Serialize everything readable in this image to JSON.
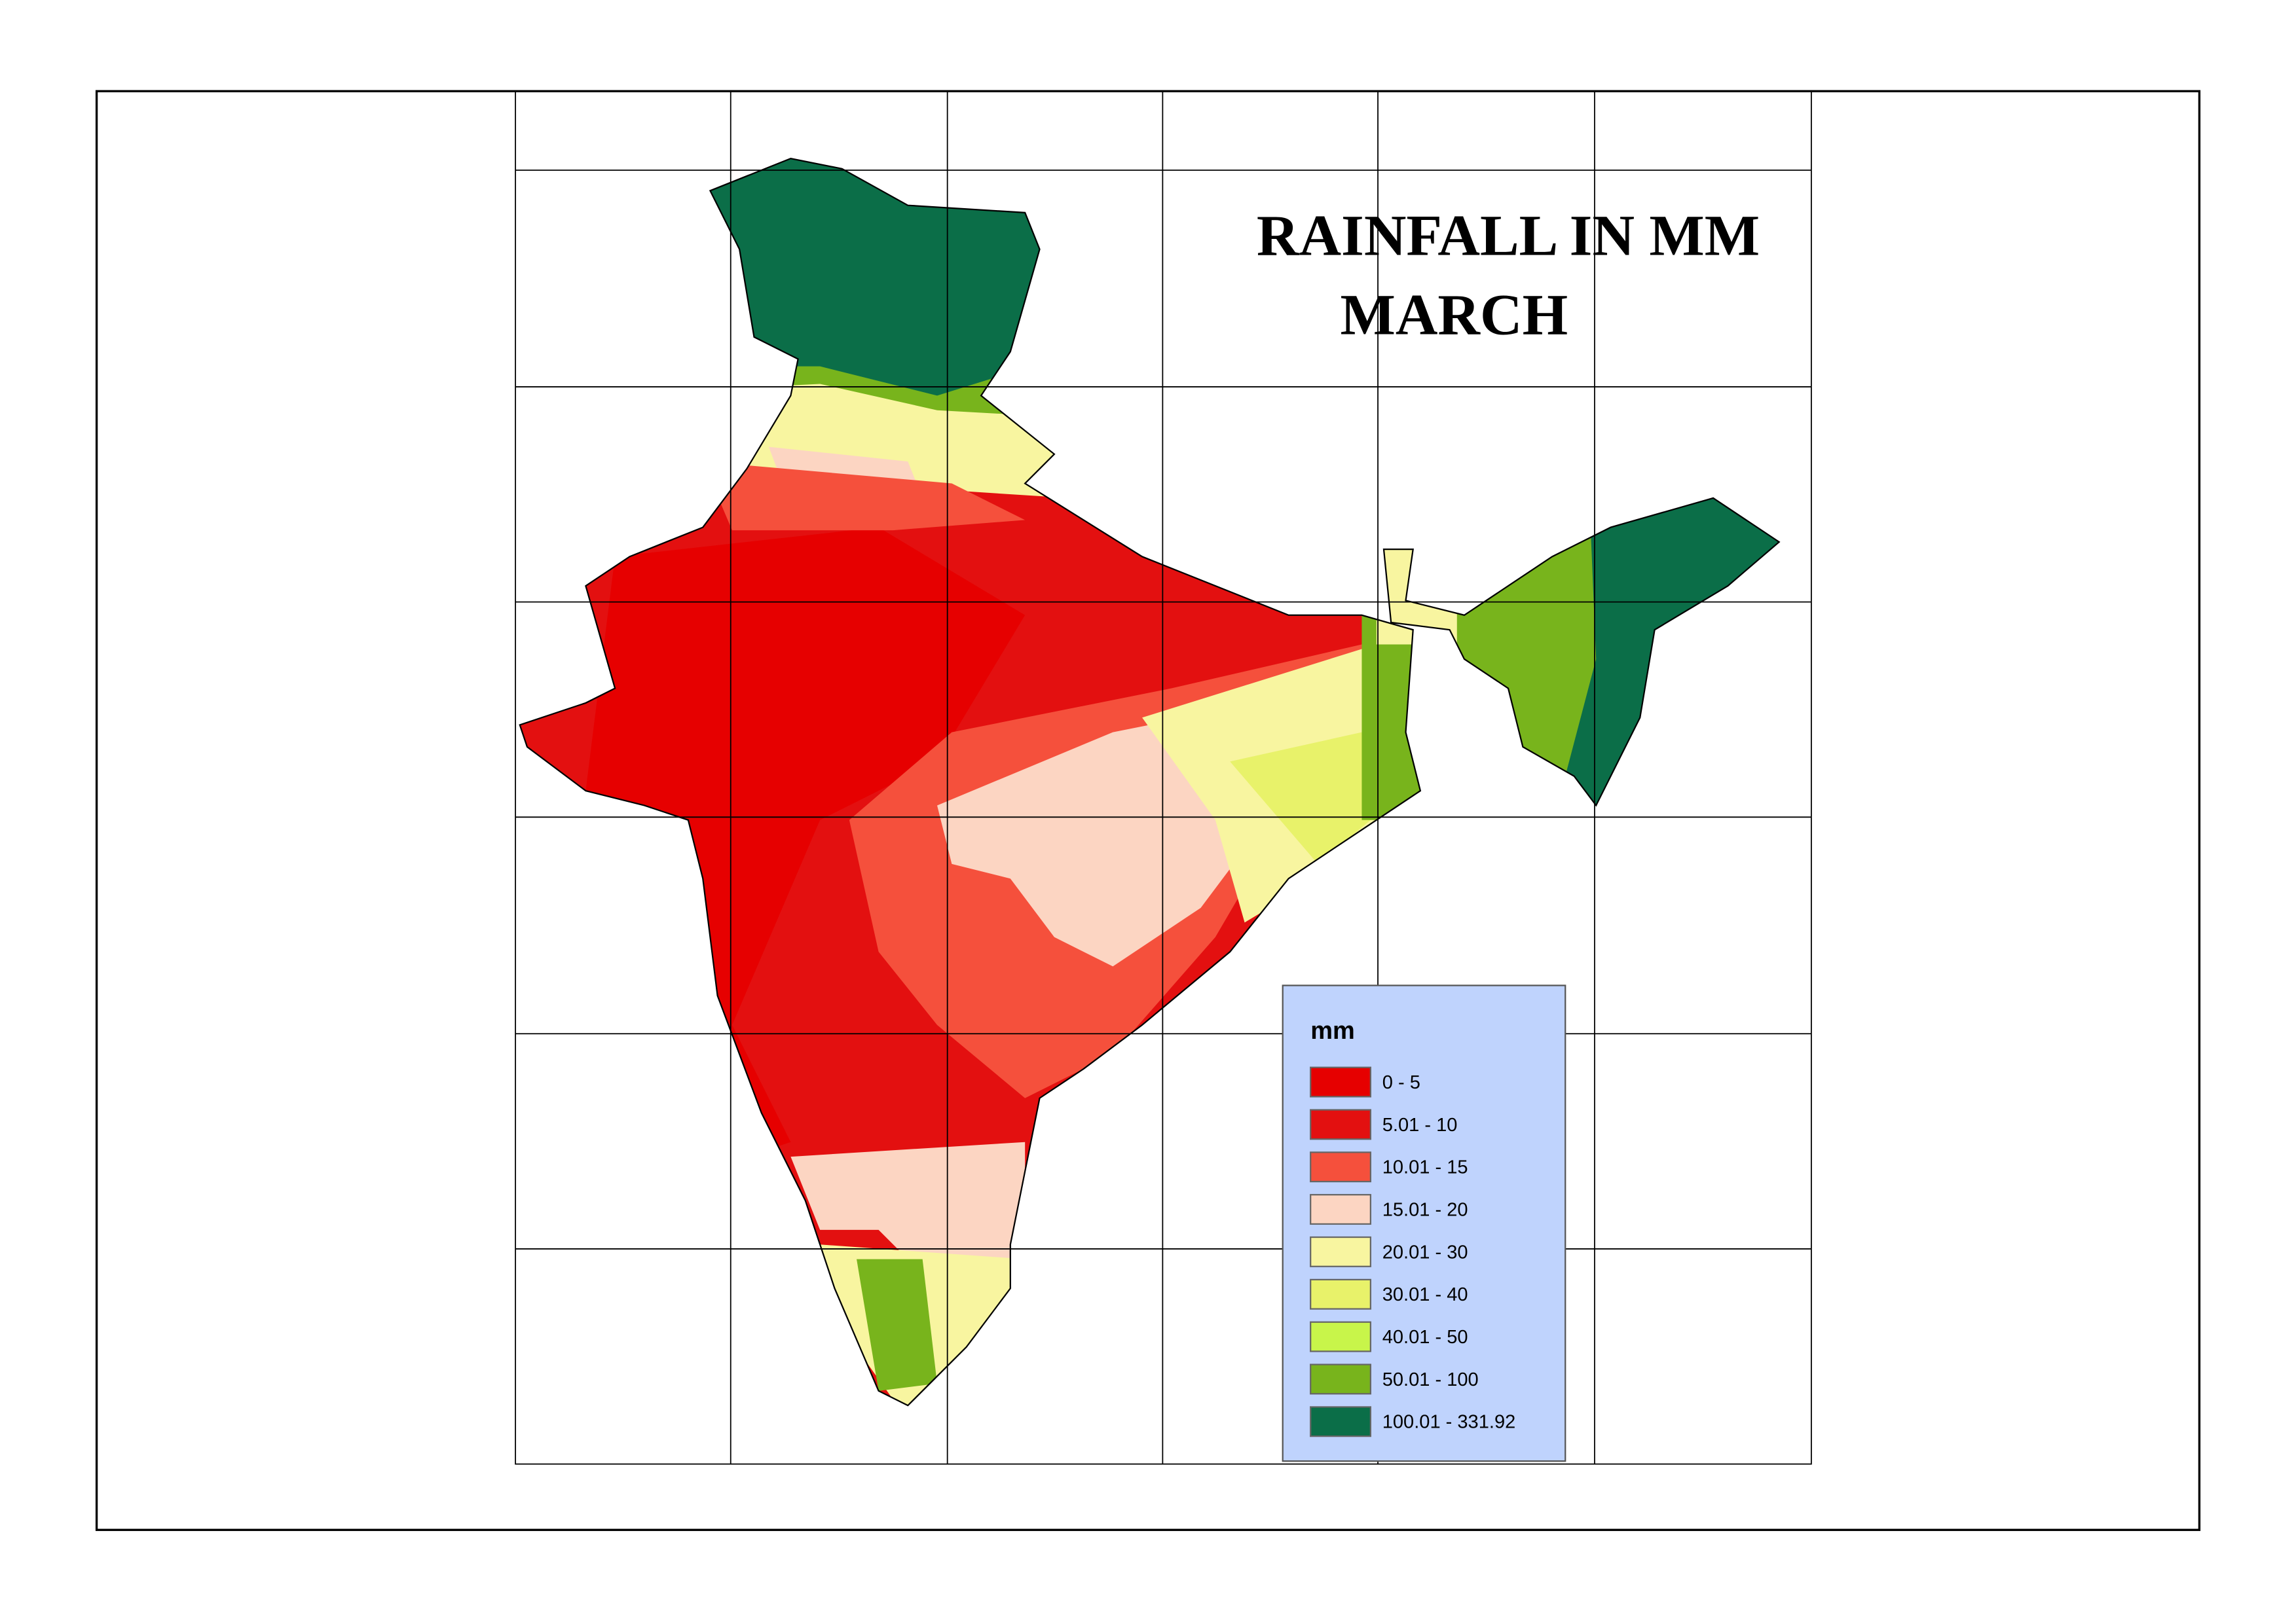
{
  "title": [
    "RAINFALL IN MM",
    "MARCH"
  ],
  "legend": {
    "title": "mm",
    "items": [
      {
        "label": "0 - 5",
        "color": "#e60000"
      },
      {
        "label": "5.01 - 10",
        "color": "#e31010"
      },
      {
        "label": "10.01 - 15",
        "color": "#f5503c"
      },
      {
        "label": "15.01 - 20",
        "color": "#fcd5c2"
      },
      {
        "label": "20.01 - 30",
        "color": "#f8f5a0"
      },
      {
        "label": "30.01 - 40",
        "color": "#e8f26a"
      },
      {
        "label": "40.01 - 50",
        "color": "#c8f54a"
      },
      {
        "label": "50.01 - 100",
        "color": "#78b41c"
      },
      {
        "label": "100.01 - 331.92",
        "color": "#0b6e48"
      }
    ]
  }
}
